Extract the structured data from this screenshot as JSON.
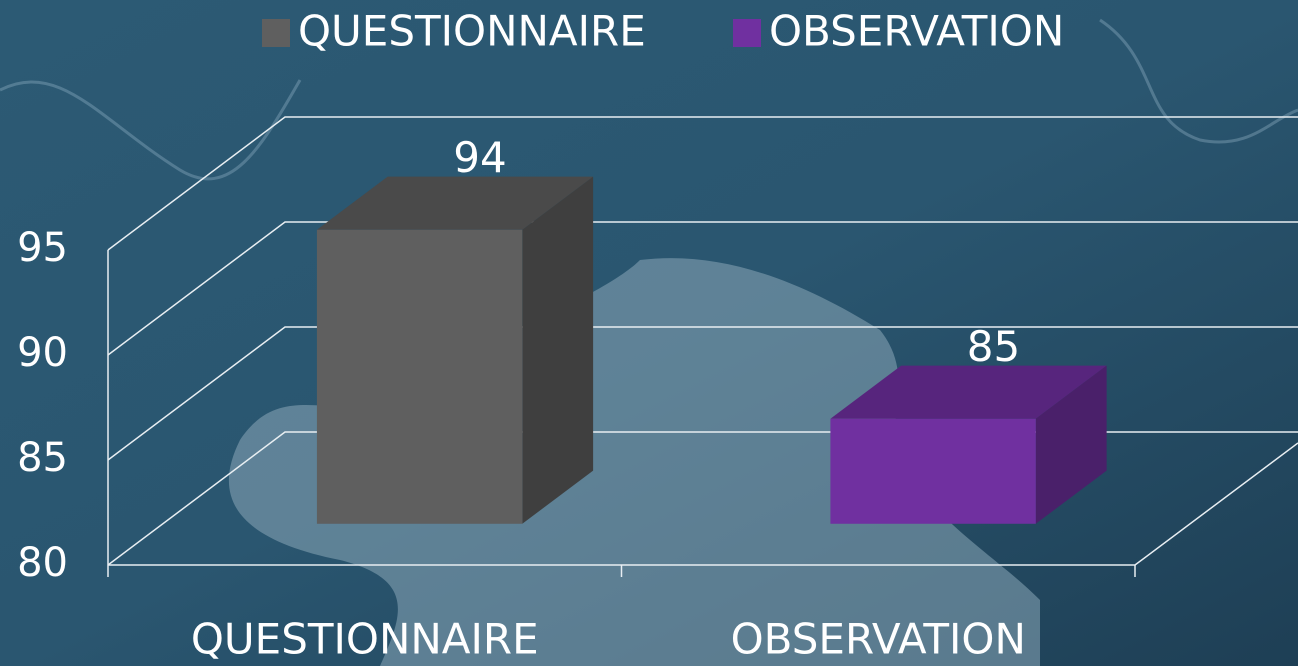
{
  "chart_data": {
    "type": "bar3d",
    "categories": [
      "QUESTIONNAIRE",
      "OBSERVATION"
    ],
    "series": [
      {
        "name": "QUESTIONNAIRE",
        "color": "#5f5f5f",
        "values": [
          94,
          null
        ]
      },
      {
        "name": "OBSERVATION",
        "color": "#7030a0",
        "values": [
          null,
          85
        ]
      }
    ],
    "ylim": [
      80,
      95
    ],
    "yticks": [
      80,
      85,
      90,
      95
    ],
    "grid": true,
    "legend": "top"
  }
}
